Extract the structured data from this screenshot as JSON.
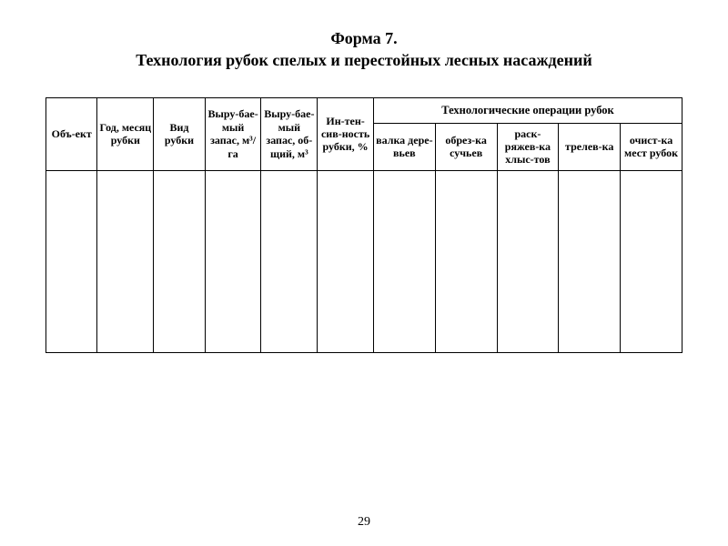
{
  "title_line1": "Форма 7.",
  "title_line2": "Технология рубок спелых и перестойных лесных насаждений",
  "table": {
    "group_header": "Технологические операции рубок",
    "columns": {
      "c1": "Объ-ект",
      "c2": "Год, месяц рубки",
      "c3": "Вид рубки",
      "c4": "Выру-бае-мый запас, м³/га",
      "c5": "Выру-бае-мый запас, об-щий, м³",
      "c6": "Ин-тен-сив-ность рубки, %",
      "c7": "валка дере-вьев",
      "c8": "обрез-ка сучьев",
      "c9": "раск-ряжев-ка хлыс-тов",
      "c10": "трелев-ка",
      "c11": "очист-ка мест рубок"
    },
    "rows": [
      {
        "c1": "",
        "c2": "",
        "c3": "",
        "c4": "",
        "c5": "",
        "c6": "",
        "c7": "",
        "c8": "",
        "c9": "",
        "c10": "",
        "c11": ""
      }
    ]
  },
  "page_number": "29",
  "colors": {
    "background": "#ffffff",
    "text": "#000000",
    "border": "#000000"
  },
  "typography": {
    "title_fontsize_pt": 14,
    "header_fontsize_pt": 9,
    "font_family": "Times New Roman"
  }
}
